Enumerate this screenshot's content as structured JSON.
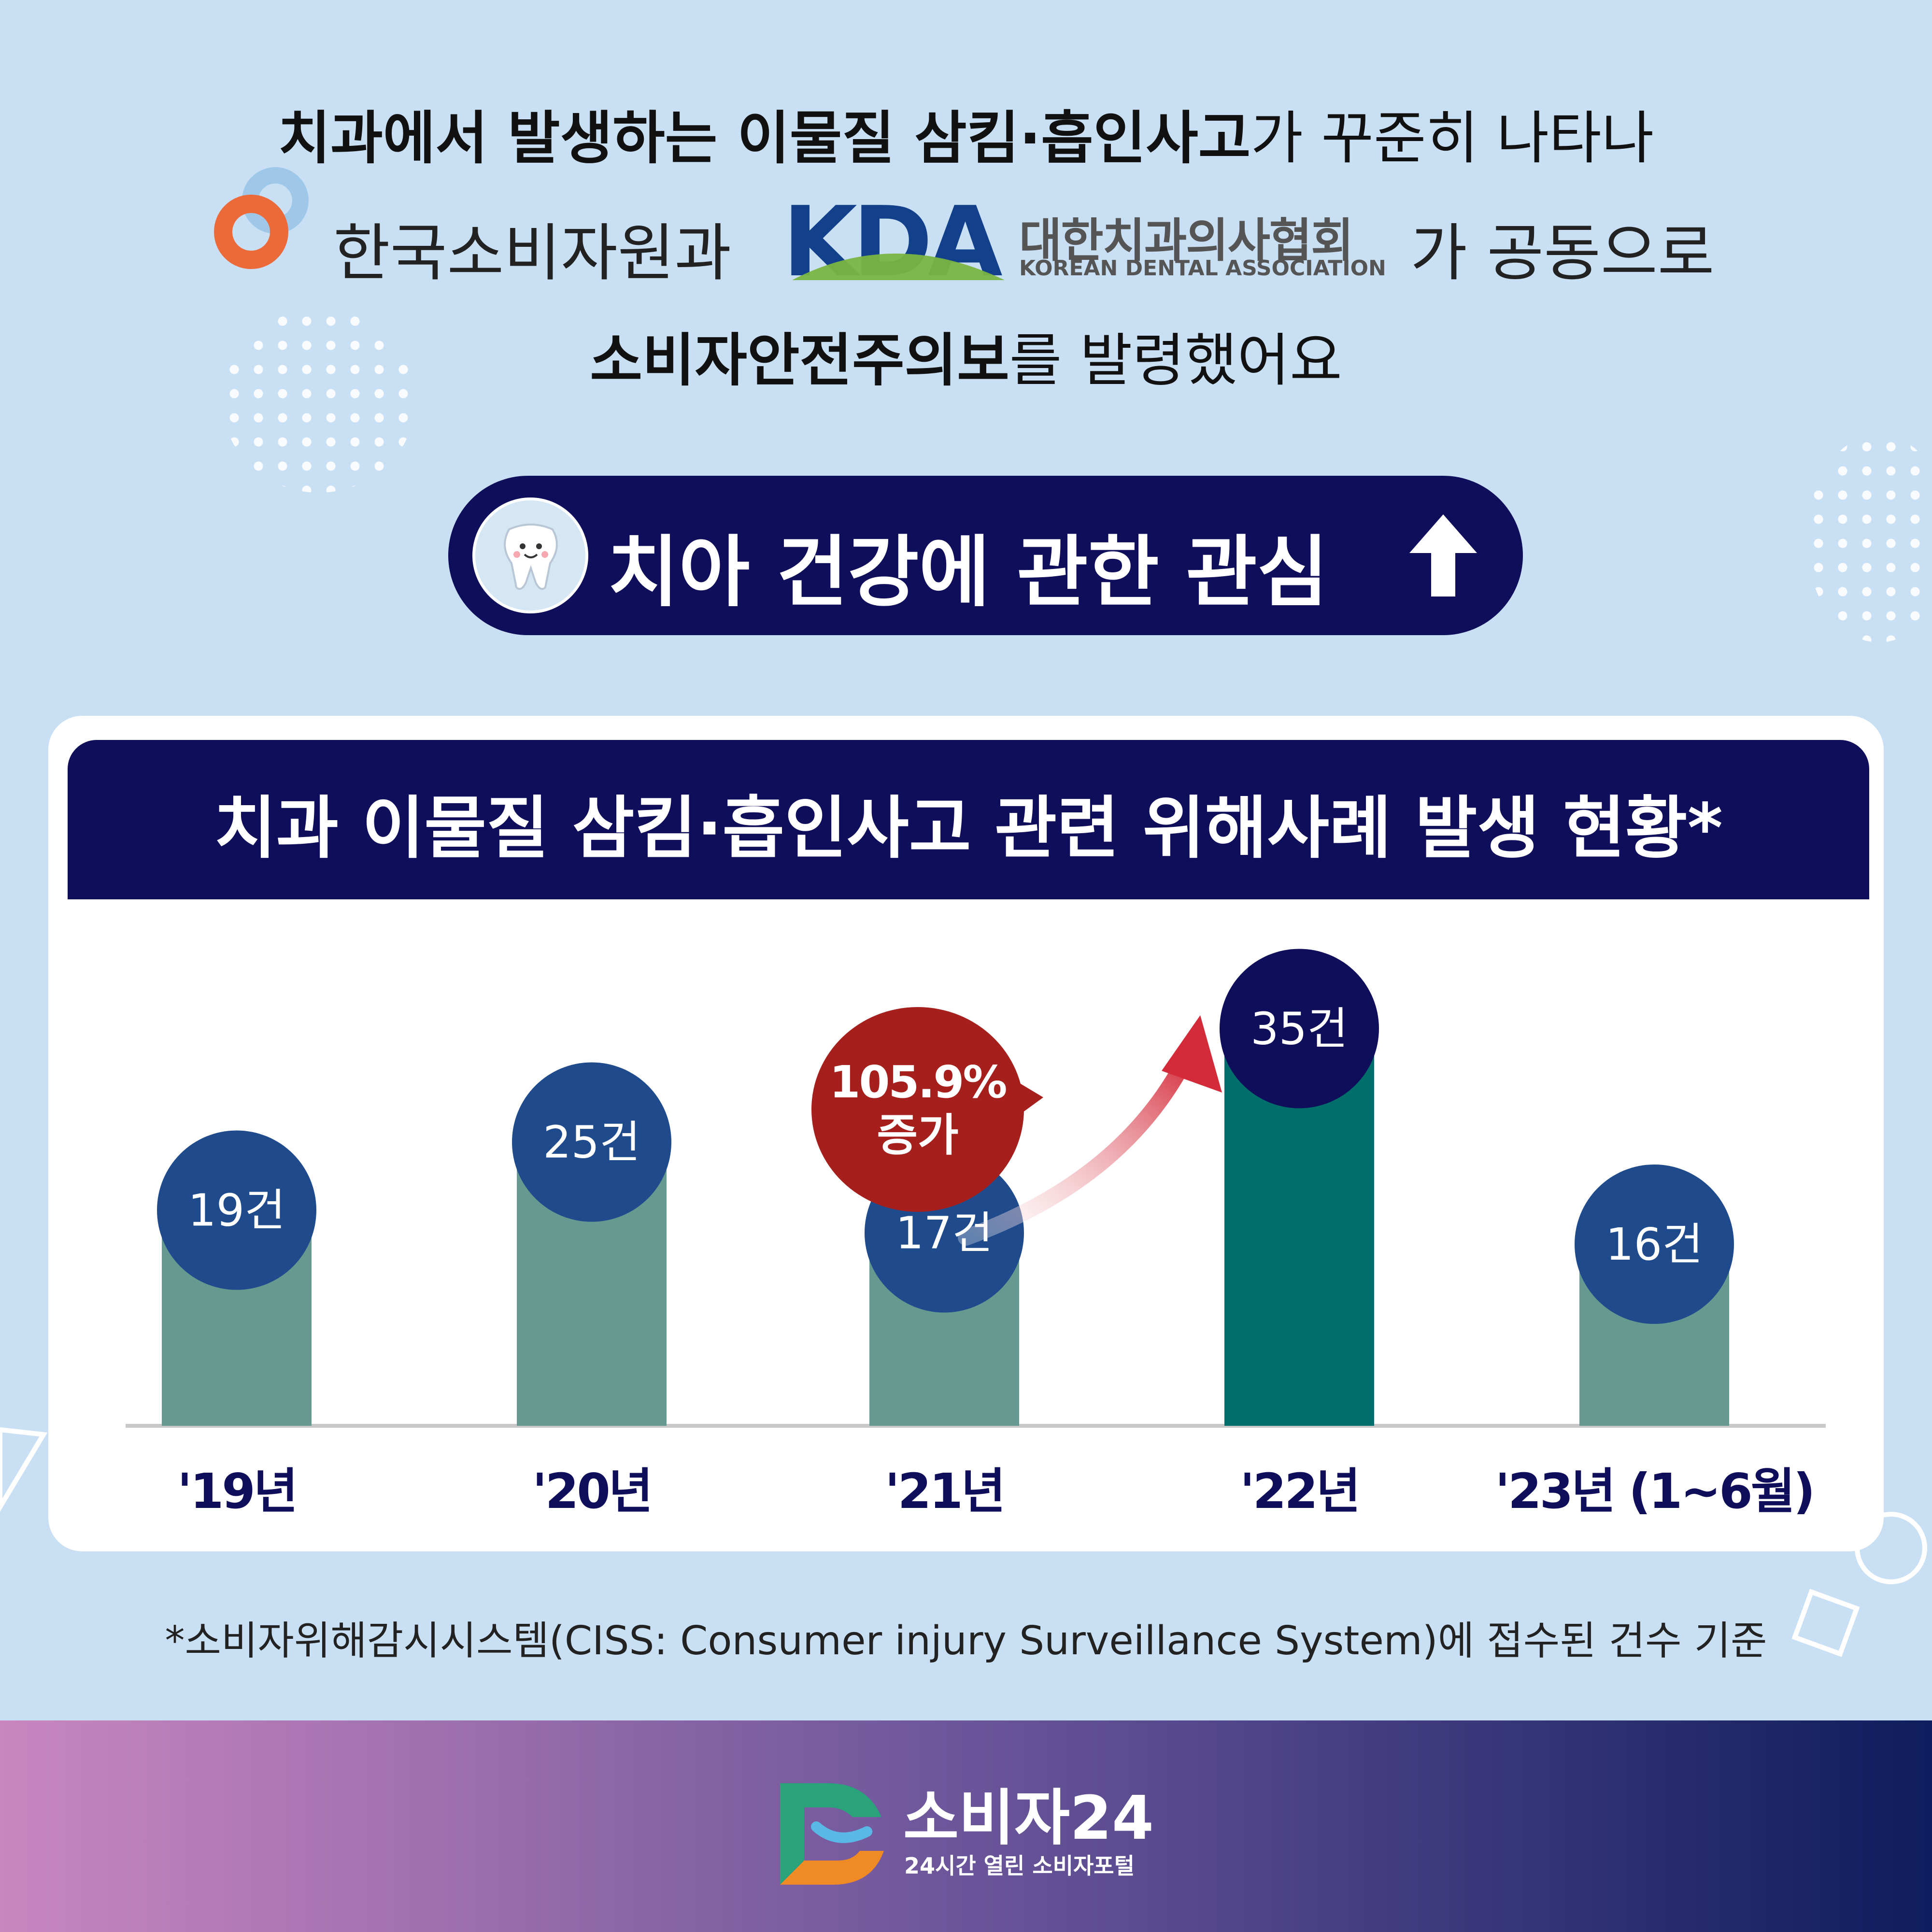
{
  "colors": {
    "bg": "#c9e0f4",
    "navy": "#0f0e5b",
    "bar": "#66998f",
    "bar_highlight": "#006e6a",
    "bubble": "#1f4b8c",
    "bubble_dark": "#0f0e5b",
    "accent_red": "#a51f1d"
  },
  "headline": {
    "line1_bold": "치과에서 발생하는 이물질 삼킴·흡인사고",
    "line1_rest": "가 꾸준히 나타나",
    "kca_name": "한국소비자원과",
    "kda_logo": "KDA",
    "kda_korean": "대한치과의사협회",
    "kda_english": "KOREAN DENTAL ASSOCIATION",
    "line2_rest": "가 공동으로",
    "line3_bold": "소비자안전주의보",
    "line3_rest": "를 발령했어요"
  },
  "pill": {
    "text": "치아 건강에 관한 관심",
    "icon": "tooth-icon",
    "arrow_icon": "up-arrow-icon"
  },
  "chart_data": {
    "type": "bar",
    "title": "치과 이물질 삼킴·흡인사고 관련 위해사례 발생 현황*",
    "categories": [
      "'19년",
      "'20년",
      "'21년",
      "'22년",
      "'23년 (1~6월)"
    ],
    "values": [
      19,
      25,
      17,
      35,
      16
    ],
    "value_labels": [
      "19건",
      "25건",
      "17건",
      "35건",
      "16건"
    ],
    "highlight_index": 3,
    "annotation": {
      "line1": "105.9%",
      "line2": "증가"
    }
  },
  "footnote": "*소비자위해감시시스템(CISS: Consumer injury Surveillance System)에 접수된 건수 기준",
  "footer": {
    "brand": "소비자24",
    "subtitle": "24시간 열린 소비자포털"
  }
}
